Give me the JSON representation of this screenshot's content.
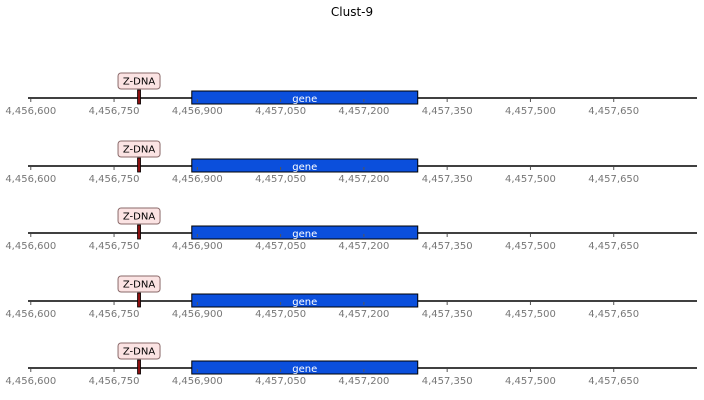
{
  "title": "Clust-9",
  "chart_data": {
    "type": "genomic-track",
    "title": "Clust-9",
    "axis": {
      "xlim": [
        4456595,
        4457800
      ],
      "ticks": [
        4456600,
        4456750,
        4456900,
        4457050,
        4457200,
        4457350,
        4457500,
        4457650
      ]
    },
    "tick_labels": [
      "4,456,600",
      "4,456,750",
      "4,456,900",
      "4,457,050",
      "4,457,200",
      "4,457,350",
      "4,457,500",
      "4,457,650"
    ],
    "tracks": [
      {
        "features": [
          {
            "type": "gene",
            "label": "gene",
            "start": 4456890,
            "end": 4457297,
            "color": "#0b4fdc"
          },
          {
            "type": "z-dna",
            "label": "Z-DNA",
            "position": 4456795,
            "color": "#fbe3e3"
          }
        ]
      },
      {
        "features": [
          {
            "type": "gene",
            "label": "gene",
            "start": 4456890,
            "end": 4457297,
            "color": "#0b4fdc"
          },
          {
            "type": "z-dna",
            "label": "Z-DNA",
            "position": 4456795,
            "color": "#fbe3e3"
          }
        ]
      },
      {
        "features": [
          {
            "type": "gene",
            "label": "gene",
            "start": 4456890,
            "end": 4457297,
            "color": "#0b4fdc"
          },
          {
            "type": "z-dna",
            "label": "Z-DNA",
            "position": 4456795,
            "color": "#fbe3e3"
          }
        ]
      },
      {
        "features": [
          {
            "type": "gene",
            "label": "gene",
            "start": 4456890,
            "end": 4457297,
            "color": "#0b4fdc"
          },
          {
            "type": "z-dna",
            "label": "Z-DNA",
            "position": 4456795,
            "color": "#fbe3e3"
          }
        ]
      },
      {
        "features": [
          {
            "type": "gene",
            "label": "gene",
            "start": 4456890,
            "end": 4457297,
            "color": "#0b4fdc"
          },
          {
            "type": "z-dna",
            "label": "Z-DNA",
            "position": 4456795,
            "color": "#fbe3e3"
          }
        ]
      }
    ]
  }
}
